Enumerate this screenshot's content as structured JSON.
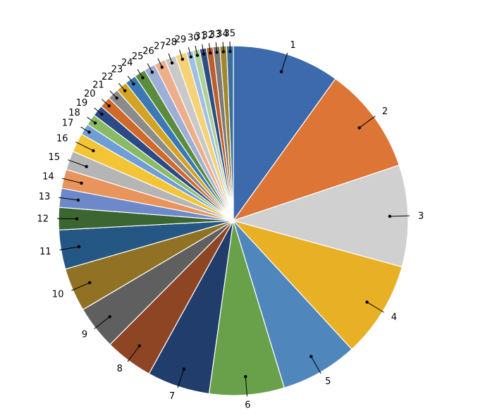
{
  "chart_data": {
    "type": "pie",
    "categories": [
      "1",
      "2",
      "3",
      "4",
      "5",
      "6",
      "7",
      "8",
      "9",
      "10",
      "11",
      "12",
      "13",
      "14",
      "15",
      "16",
      "17",
      "18",
      "19",
      "20",
      "21",
      "22",
      "23",
      "24",
      "25",
      "26",
      "27",
      "28",
      "29",
      "30",
      "31",
      "32",
      "33",
      "34",
      "35"
    ],
    "values": [
      9.6,
      9.6,
      9.1,
      8.6,
      6.9,
      6.7,
      5.6,
      4.3,
      3.9,
      3.9,
      3.5,
      2.0,
      1.7,
      1.7,
      1.7,
      1.7,
      1.0,
      1.0,
      1.0,
      1.0,
      1.0,
      1.0,
      1.0,
      1.0,
      1.0,
      1.0,
      1.0,
      1.0,
      0.6,
      0.6,
      0.6,
      0.6,
      0.6,
      0.6,
      0.6
    ],
    "colors": [
      "#3d69ad",
      "#dc7536",
      "#d0d0d0",
      "#e8b025",
      "#4f87bd",
      "#69a04a",
      "#203d6c",
      "#8e4524",
      "#5e5f5e",
      "#917123",
      "#245784",
      "#3c6631",
      "#6d89c9",
      "#e8945c",
      "#b5b5b5",
      "#f3c536",
      "#6f9ed6",
      "#8bba66",
      "#2c4b86",
      "#cf6a2a",
      "#8b8b8b",
      "#d4a324",
      "#3a79b4",
      "#5b8c3d",
      "#9daed8",
      "#edae8a",
      "#c9c9c9",
      "#f5d278",
      "#9fc0e3",
      "#b0d09a",
      "#2b4f82",
      "#bd5f2c",
      "#7a7a7a",
      "#a0862e",
      "#3a6f9c"
    ],
    "start_angle_deg": 0,
    "direction": "clockwise",
    "legend": "none",
    "data_labels": "category",
    "title": "",
    "xlabel": "",
    "ylabel": ""
  }
}
